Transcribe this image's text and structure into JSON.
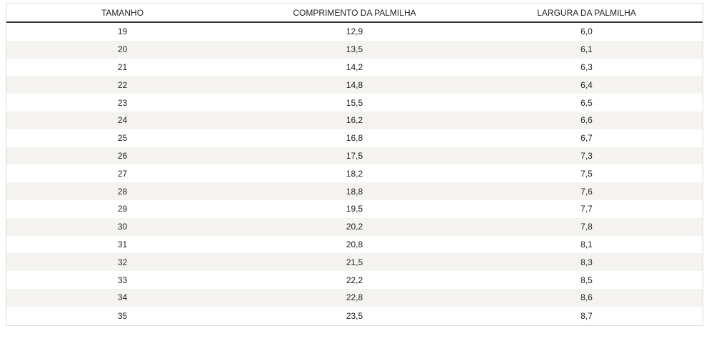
{
  "table": {
    "header": [
      "TAMANHO",
      "COMPRIMENTO DA PALMILHA",
      "LARGURA DA PALMILHA"
    ],
    "rows": [
      [
        "19",
        "12,9",
        "6,0"
      ],
      [
        "20",
        "13,5",
        "6,1"
      ],
      [
        "21",
        "14,2",
        "6,3"
      ],
      [
        "22",
        "14,8",
        "6,4"
      ],
      [
        "23",
        "15,5",
        "6,5"
      ],
      [
        "24",
        "16,2",
        "6,6"
      ],
      [
        "25",
        "16,8",
        "6,7"
      ],
      [
        "26",
        "17,5",
        "7,3"
      ],
      [
        "27",
        "18,2",
        "7,5"
      ],
      [
        "28",
        "18,8",
        "7,6"
      ],
      [
        "29",
        "19,5",
        "7,7"
      ],
      [
        "30",
        "20,2",
        "7,8"
      ],
      [
        "31",
        "20,8",
        "8,1"
      ],
      [
        "32",
        "21,5",
        "8,3"
      ],
      [
        "33",
        "22,2",
        "8,5"
      ],
      [
        "34",
        "22,8",
        "8,6"
      ],
      [
        "35",
        "23,5",
        "8,7"
      ]
    ]
  }
}
